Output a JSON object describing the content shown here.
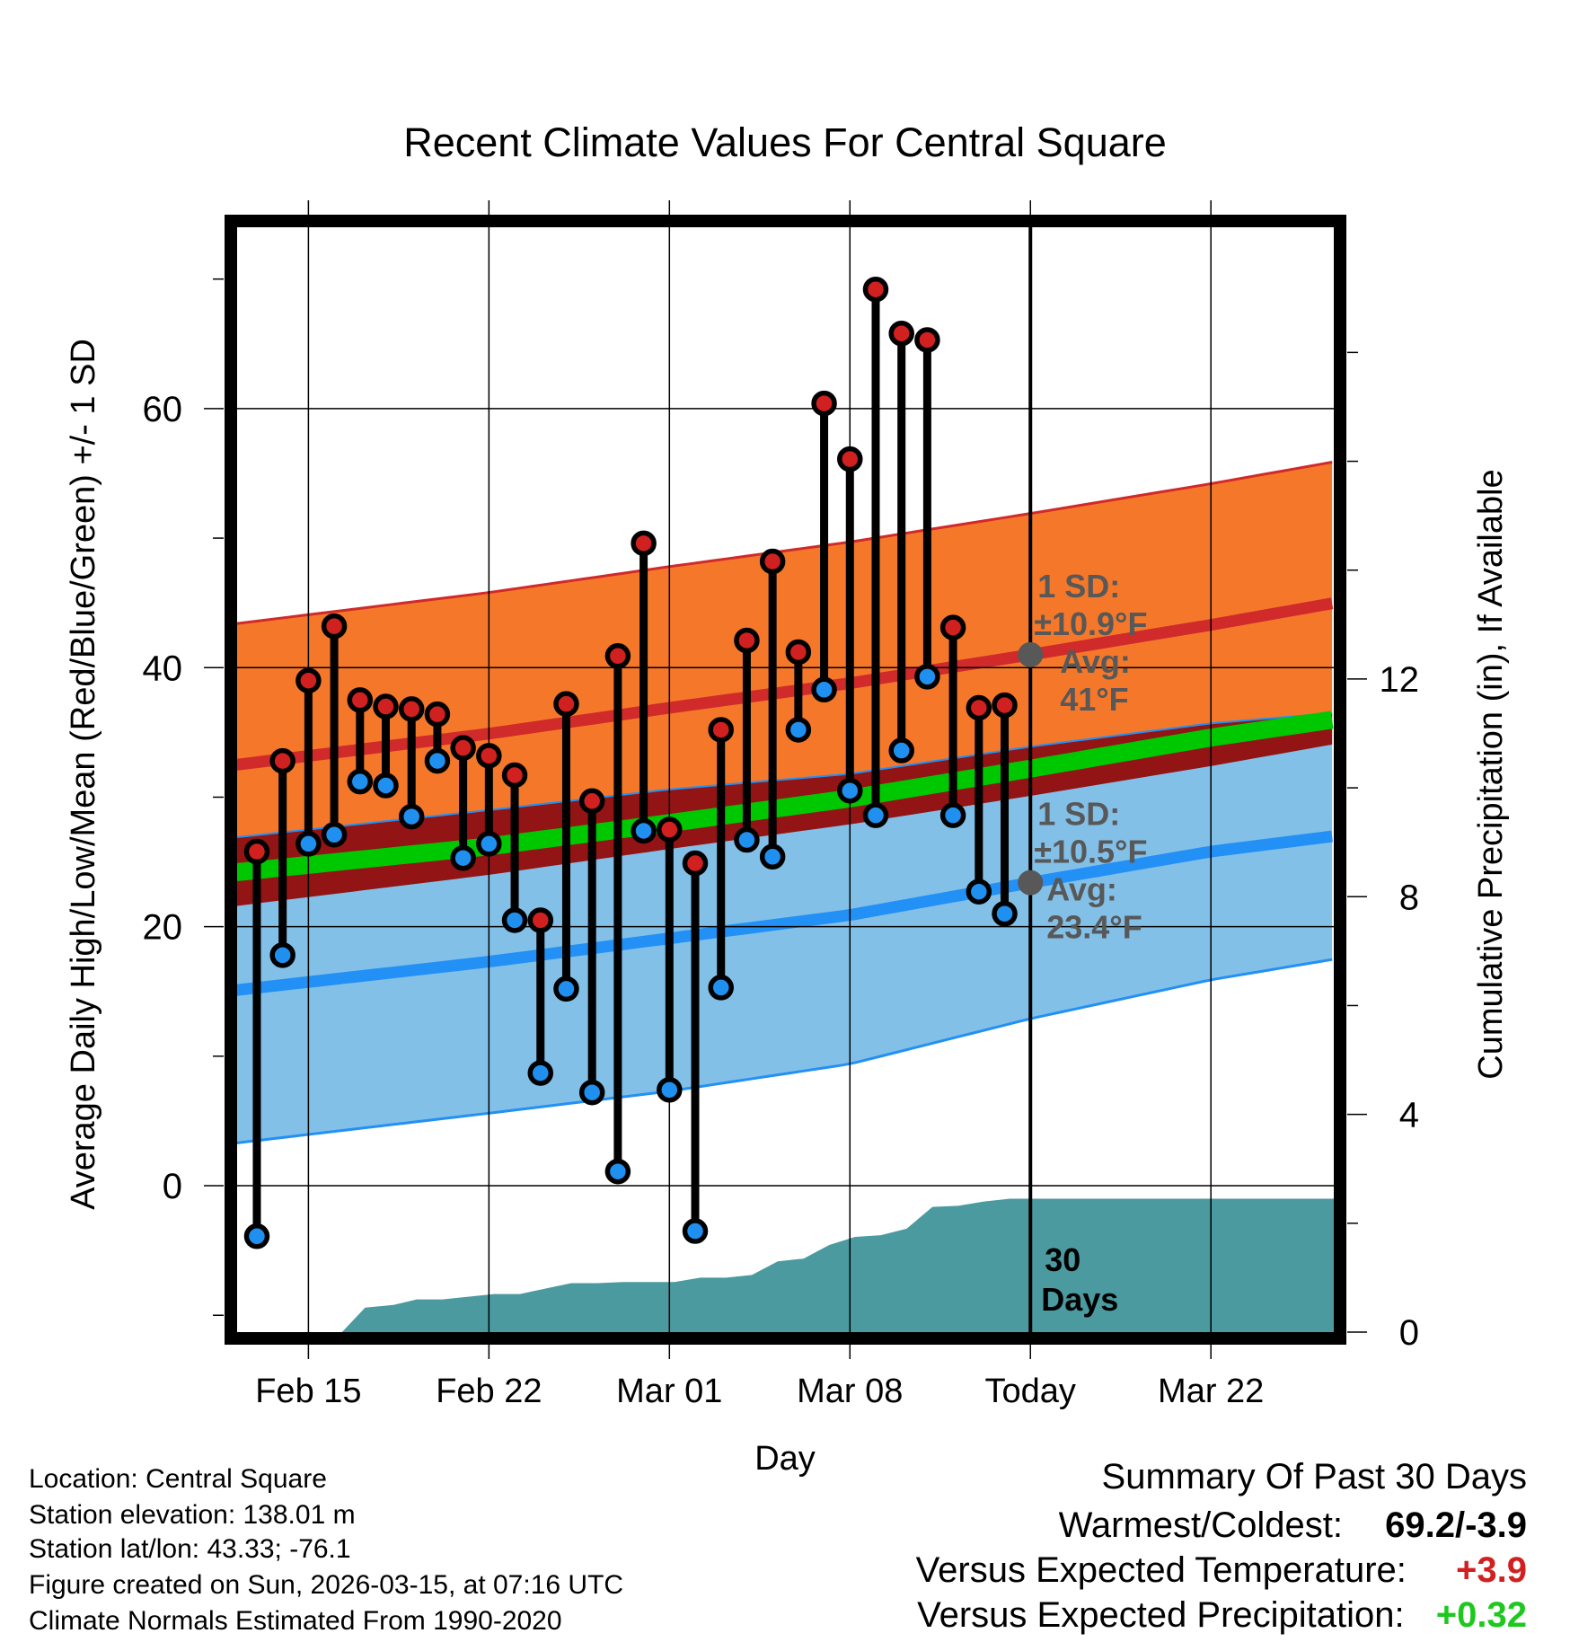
{
  "chart_data": {
    "type": "line",
    "title": "Recent Climate Values For Central Square",
    "xlabel": "Day",
    "ylabel": "Average Daily High/Low/Mean (Red/Blue/Green) +/- 1 SD",
    "ylabel_right": "Cumulative Precipitation (in), If Available",
    "xlim": [
      -2.8,
      39.8
    ],
    "ylim": [
      -11.3,
      74
    ],
    "y2lim": [
      0,
      20.3
    ],
    "x_ticks": [
      {
        "day": 0,
        "label": "Feb 15"
      },
      {
        "day": 7,
        "label": "Feb 22"
      },
      {
        "day": 14,
        "label": "Mar 01"
      },
      {
        "day": 21,
        "label": "Mar 08"
      },
      {
        "day": 28,
        "label": "Today"
      },
      {
        "day": 35,
        "label": "Mar 22"
      }
    ],
    "y_ticks": [
      0,
      20,
      40,
      60
    ],
    "y2_ticks": [
      0,
      4,
      8,
      12
    ],
    "today_day": 28,
    "days": [
      -2,
      -1,
      0,
      1,
      2,
      3,
      4,
      5,
      6,
      7,
      8,
      9,
      10,
      11,
      12,
      13,
      14,
      15,
      16,
      17,
      18,
      19,
      20,
      21,
      22,
      23,
      24,
      25,
      26,
      27
    ],
    "series": [
      {
        "name": "Daily High",
        "color": "#d02020",
        "values": [
          25.8,
          32.8,
          39.0,
          43.2,
          37.5,
          37.0,
          36.8,
          36.4,
          33.8,
          33.2,
          31.7,
          20.5,
          37.2,
          29.7,
          40.9,
          49.6,
          27.5,
          24.9,
          35.2,
          42.1,
          48.2,
          41.2,
          60.4,
          56.1,
          69.2,
          65.8,
          65.3,
          43.1,
          36.9,
          37.1
        ]
      },
      {
        "name": "Daily Low",
        "color": "#2090f0",
        "values": [
          -3.9,
          17.8,
          26.4,
          27.1,
          31.2,
          30.9,
          28.5,
          32.8,
          25.3,
          26.4,
          20.5,
          8.7,
          15.2,
          7.2,
          1.1,
          27.4,
          7.4,
          -3.5,
          15.3,
          26.7,
          25.4,
          35.2,
          38.3,
          30.5,
          28.6,
          33.6,
          39.3,
          28.6,
          22.7,
          21.0
        ]
      }
    ],
    "normals": {
      "high_mean": {
        "days": [
          -2.8,
          7,
          14,
          21,
          28,
          35,
          39.8
        ],
        "values": [
          32.5,
          34.9,
          36.9,
          38.8,
          41,
          43.3,
          45
        ]
      },
      "high_sd_band": {
        "days": [
          -2.8,
          7,
          14,
          21,
          28,
          35,
          39.8
        ],
        "lower": [
          21.6,
          24.0,
          26.0,
          27.9,
          30.1,
          32.4,
          34.1
        ],
        "upper": [
          43.4,
          45.8,
          47.8,
          49.7,
          51.9,
          54.2,
          55.9
        ]
      },
      "low_mean": {
        "days": [
          -2.8,
          7,
          14,
          21,
          28,
          35,
          39.8
        ],
        "values": [
          15.1,
          17.3,
          19.1,
          20.9,
          23.4,
          25.8,
          27
        ]
      },
      "low_sd_band": {
        "days": [
          -2.8,
          7,
          14,
          21,
          28,
          35,
          39.8
        ],
        "lower": [
          3.3,
          5.6,
          7.3,
          9.4,
          12.9,
          15.9,
          17.5
        ],
        "upper": [
          26.9,
          29.0,
          30.6,
          31.8,
          33.9,
          35.7,
          36.5
        ]
      },
      "mean": {
        "days": [
          -2.8,
          7,
          14,
          21,
          28,
          35,
          39.8
        ],
        "values": [
          24.2,
          26.2,
          28.0,
          29.9,
          32.2,
          34.6,
          36.0
        ]
      }
    },
    "precip_cumulative": {
      "days": [
        -2.8,
        1.3,
        2.2,
        3.3,
        4.2,
        5.2,
        6.2,
        7.2,
        8.2,
        9.2,
        10.2,
        11.2,
        12.2,
        13.2,
        14.2,
        15.2,
        16.2,
        17.2,
        18.2,
        19.2,
        20.2,
        21.2,
        22.2,
        23.2,
        24.2,
        25.2,
        26.2,
        27.2,
        39.8
      ],
      "values": [
        0,
        0,
        0.45,
        0.5,
        0.6,
        0.6,
        0.65,
        0.7,
        0.7,
        0.8,
        0.9,
        0.9,
        0.92,
        0.92,
        0.92,
        1.0,
        1.0,
        1.05,
        1.3,
        1.35,
        1.6,
        1.75,
        1.78,
        1.9,
        2.3,
        2.32,
        2.4,
        2.45,
        2.45
      ]
    },
    "annotations": {
      "high_label_1": "1 SD:",
      "high_label_2": "±10.9°F",
      "high_label_3": "Avg:",
      "high_label_4": "41°F",
      "low_label_1": "1 SD:",
      "low_label_2": "±10.5°F",
      "low_label_3": "Avg:",
      "low_label_4": "23.4°F",
      "days_label_1": "30",
      "days_label_2": "Days"
    }
  },
  "colors": {
    "high_band": "#f5782a",
    "high_line": "#d02a2a",
    "low_band": "#82c0e8",
    "low_line": "#2290f5",
    "overlap": "#921414",
    "mean": "#00c800",
    "precip": "#4a9aa0",
    "annotation": "#585858"
  },
  "info": {
    "location": "Location: Central Square",
    "elevation": "Station elevation: 138.01 m",
    "latlon": "Station lat/lon: 43.33; -76.1",
    "created": "Figure created on Sun, 2026-03-15, at 07:16 UTC",
    "normals": "Climate Normals Estimated From 1990-2020"
  },
  "summary": {
    "title": "Summary Of Past 30 Days",
    "warmest_coldest_label": "Warmest/Coldest:",
    "warmest_coldest_value": "69.2/-3.9",
    "temp_label": "Versus Expected Temperature:",
    "temp_value": "+3.9",
    "precip_label": "Versus Expected Precipitation:",
    "precip_value": "+0.32"
  }
}
